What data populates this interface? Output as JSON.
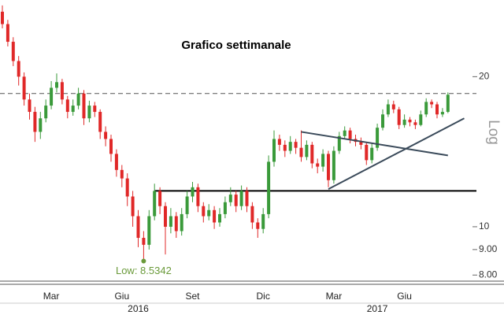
{
  "chart_data": {
    "type": "candlestick",
    "title": "Grafico settimanale",
    "scale_label": "Log",
    "log_scale": true,
    "categories": [
      null,
      null,
      null,
      null,
      null,
      null,
      null,
      null,
      null,
      "Mar",
      null,
      null,
      null,
      null,
      null,
      null,
      null,
      null,
      null,
      null,
      null,
      null,
      "Giu",
      null,
      null,
      null,
      null,
      null,
      null,
      null,
      null,
      null,
      null,
      null,
      null,
      "Set",
      null,
      null,
      null,
      null,
      null,
      null,
      null,
      null,
      null,
      null,
      null,
      null,
      "Dic",
      null,
      null,
      null,
      null,
      null,
      null,
      null,
      null,
      null,
      null,
      null,
      null,
      "Mar",
      null,
      null,
      null,
      null,
      null,
      null,
      null,
      null,
      null,
      null,
      null,
      null,
      "Giu",
      null,
      null,
      null,
      null,
      null,
      null,
      null,
      null
    ],
    "year_categories": [
      null,
      null,
      null,
      null,
      null,
      null,
      null,
      null,
      null,
      null,
      null,
      null,
      null,
      null,
      null,
      null,
      null,
      null,
      null,
      null,
      null,
      null,
      null,
      null,
      null,
      "2016",
      null,
      null,
      null,
      null,
      null,
      null,
      null,
      null,
      null,
      null,
      null,
      null,
      null,
      null,
      null,
      null,
      null,
      null,
      null,
      null,
      null,
      null,
      null,
      null,
      null,
      null,
      null,
      null,
      null,
      null,
      null,
      null,
      null,
      null,
      null,
      null,
      null,
      null,
      null,
      null,
      null,
      null,
      null,
      "2017",
      null,
      null,
      null,
      null,
      null,
      null,
      null,
      null,
      null,
      null,
      null,
      null,
      null
    ],
    "opens": [
      27.0,
      25.5,
      23.5,
      21.5,
      20.0,
      18.0,
      17.0,
      15.5,
      16.5,
      17.5,
      19.0,
      19.5,
      18.0,
      17.0,
      17.5,
      18.5,
      16.5,
      17.5,
      17.0,
      15.5,
      15.0,
      14.0,
      13.0,
      12.5,
      11.5,
      10.5,
      9.5,
      9.2,
      10.5,
      11.8,
      11.0,
      10.0,
      10.5,
      9.8,
      10.6,
      11.5,
      12.0,
      11.0,
      10.5,
      10.8,
      10.2,
      10.6,
      11.2,
      11.6,
      11.0,
      11.8,
      11.0,
      10.2,
      9.9,
      10.6,
      13.5,
      15.0,
      14.6,
      14.2,
      14.8,
      14.4,
      13.8,
      14.6,
      13.4,
      13.2,
      14.0,
      12.4,
      14.2,
      15.2,
      15.6,
      15.0,
      14.8,
      14.6,
      13.6,
      14.4,
      15.8,
      16.8,
      17.6,
      17.2,
      16.0,
      16.4,
      16.2,
      16.0,
      16.8,
      17.8,
      17.6,
      16.8,
      17.0
    ],
    "highs": [
      27.8,
      26.0,
      24.0,
      22.0,
      20.4,
      18.5,
      17.4,
      17.0,
      18.0,
      19.6,
      20.3,
      19.8,
      18.3,
      18.0,
      19.0,
      18.8,
      17.9,
      17.8,
      17.2,
      15.9,
      15.3,
      14.3,
      13.3,
      12.8,
      11.8,
      10.8,
      9.8,
      10.8,
      12.2,
      12.0,
      11.2,
      10.9,
      10.7,
      10.9,
      11.8,
      12.3,
      12.2,
      11.2,
      11.1,
      11.0,
      10.9,
      11.5,
      12.0,
      11.8,
      12.1,
      12.0,
      11.2,
      10.4,
      10.9,
      13.9,
      15.6,
      15.3,
      14.9,
      15.2,
      15.0,
      15.6,
      14.9,
      14.8,
      13.7,
      14.3,
      14.2,
      14.5,
      15.5,
      15.9,
      15.8,
      15.3,
      15.1,
      14.8,
      14.7,
      16.1,
      17.2,
      18.0,
      17.9,
      17.4,
      16.8,
      16.6,
      16.4,
      17.1,
      18.1,
      18.0,
      17.8,
      17.3,
      18.6
    ],
    "lows": [
      25.0,
      23.0,
      21.0,
      19.2,
      17.5,
      16.4,
      14.8,
      15.0,
      16.2,
      17.2,
      18.6,
      17.6,
      16.5,
      16.7,
      17.2,
      16.0,
      16.2,
      16.6,
      15.0,
      14.5,
      13.5,
      12.6,
      12.0,
      11.0,
      10.0,
      9.1,
      8.5342,
      9.0,
      10.3,
      10.6,
      8.8,
      9.7,
      9.5,
      9.6,
      10.4,
      11.2,
      10.7,
      10.2,
      10.3,
      9.9,
      10.0,
      10.4,
      11.0,
      10.7,
      10.8,
      10.7,
      9.9,
      9.5,
      9.7,
      10.4,
      13.2,
      14.2,
      13.8,
      14.0,
      14.0,
      13.5,
      13.6,
      13.1,
      12.8,
      12.9,
      12.0,
      12.2,
      14.0,
      15.0,
      14.7,
      14.5,
      14.3,
      13.3,
      13.4,
      14.2,
      15.6,
      16.6,
      16.9,
      15.7,
      15.8,
      15.9,
      15.7,
      15.9,
      16.6,
      17.3,
      16.5,
      16.6,
      16.9
    ],
    "closes": [
      25.5,
      23.5,
      21.5,
      20.0,
      18.0,
      17.0,
      15.5,
      16.5,
      17.5,
      19.0,
      19.5,
      18.0,
      17.0,
      17.5,
      18.5,
      16.5,
      17.5,
      17.0,
      15.5,
      15.0,
      14.0,
      13.0,
      12.5,
      11.5,
      10.5,
      9.5,
      9.2,
      10.5,
      11.8,
      11.0,
      10.0,
      10.5,
      9.8,
      10.6,
      11.5,
      12.0,
      11.0,
      10.5,
      10.8,
      10.2,
      10.6,
      11.2,
      11.6,
      11.0,
      11.8,
      11.0,
      10.2,
      9.9,
      10.6,
      13.5,
      15.0,
      14.6,
      14.2,
      14.8,
      14.4,
      13.8,
      14.6,
      13.4,
      13.2,
      14.0,
      12.4,
      14.2,
      15.2,
      15.6,
      15.0,
      14.8,
      14.6,
      13.6,
      14.4,
      15.8,
      16.8,
      17.6,
      17.2,
      16.0,
      16.4,
      16.2,
      16.0,
      16.8,
      17.8,
      17.6,
      16.8,
      17.0,
      18.4
    ],
    "up_color": "#3a9a3a",
    "down_color": "#e02828",
    "ylim": [
      7.75,
      28.5
    ],
    "yticks": [
      {
        "value": 8,
        "label": "8.00"
      },
      {
        "value": 9,
        "label": "9.00"
      },
      10,
      20
    ],
    "hlines": [
      {
        "value": 18.5,
        "start": 0,
        "style": "dashed",
        "color": "#555555"
      },
      {
        "value": 11.8,
        "start": 28,
        "style": "solid",
        "color": "#000000"
      }
    ],
    "trendlines": [
      {
        "from": [
          55,
          15.5
        ],
        "to": [
          82,
          13.9
        ],
        "color": "#3a4a5a"
      },
      {
        "from": [
          60,
          11.9
        ],
        "to": [
          85,
          16.5
        ],
        "color": "#3a4a5a"
      }
    ],
    "low_annotation": {
      "text": "Low: 8.5342",
      "point": 26,
      "color": "#6a9a3a"
    }
  }
}
